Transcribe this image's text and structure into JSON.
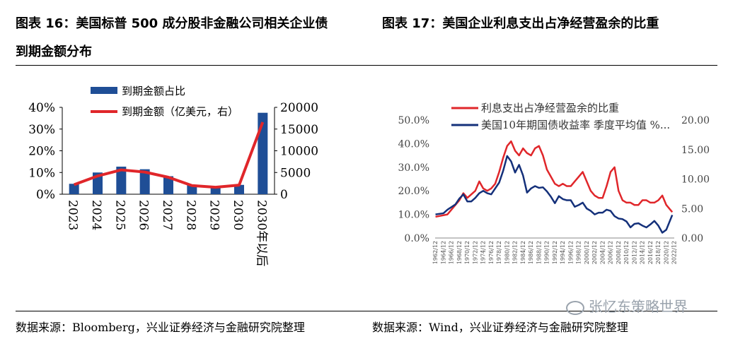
{
  "figure16": {
    "title_line1": "图表 16：美国标普 500 成分股非金融公司相关企业债",
    "title_line2": "到期金额分布",
    "source": "数据来源：Bloomberg，兴业证券经济与金融研究院整理"
  },
  "figure17": {
    "title": "图表 17：美国企业利息支出占净经营盈余的比重",
    "source": "数据来源：Wind，兴业证券经济与金融研究院整理"
  },
  "watermark": "张忆东策略世界",
  "colors": {
    "bar": "#1f4e96",
    "red": "#e0262a",
    "navy": "#14307a"
  },
  "chart_data": [
    {
      "type": "bar",
      "categories": [
        "2023",
        "2024",
        "2025",
        "2026",
        "2027",
        "2028",
        "2029",
        "2030",
        "2030年以后"
      ],
      "series": [
        {
          "name": "到期金额占比",
          "type": "bar",
          "axis": "left",
          "values": [
            4.8,
            10.0,
            12.7,
            11.5,
            8.3,
            4.3,
            3.5,
            4.3,
            37.5
          ]
        },
        {
          "name": "到期金额（亿美元，右）",
          "type": "line",
          "axis": "right",
          "values": [
            2200,
            4200,
            5600,
            5100,
            3900,
            2000,
            1600,
            2100,
            16600
          ]
        }
      ],
      "ylim": [
        0,
        40
      ],
      "y_ticks": [
        "0%",
        "10%",
        "20%",
        "30%",
        "40%"
      ],
      "y2lim": [
        0,
        20000
      ],
      "y2_ticks": [
        "0",
        "5000",
        "10000",
        "15000",
        "20000"
      ],
      "legend": "top"
    },
    {
      "type": "line",
      "x_ticks": [
        "1962/12",
        "1964/12",
        "1966/12",
        "1968/12",
        "1970/12",
        "1972/12",
        "1974/12",
        "1976/12",
        "1978/12",
        "1980/12",
        "1982/12",
        "1984/12",
        "1986/12",
        "1988/12",
        "1990/12",
        "1992/12",
        "1994/12",
        "1996/12",
        "1998/12",
        "2000/12",
        "2002/12",
        "2004/12",
        "2006/12",
        "2008/12",
        "2010/12",
        "2012/12",
        "2014/12",
        "2016/12",
        "2018/12",
        "2020/12",
        "2022/12"
      ],
      "xlim": [
        1962.9,
        2023.0
      ],
      "ylim": [
        0,
        50
      ],
      "y_ticks": [
        "0.0%",
        "10.0%",
        "20.0%",
        "30.0%",
        "40.0%",
        "50.0%"
      ],
      "y2lim": [
        0,
        20
      ],
      "y2_ticks": [
        "0.00",
        "5.00",
        "10.00",
        "15.00",
        "20.00"
      ],
      "legend": "top",
      "series": [
        {
          "name": "利息支出占净经营盈余的比重",
          "axis": "left",
          "x": [
            1963,
            1966,
            1968,
            1969,
            1970,
            1971,
            1973,
            1974,
            1975,
            1976,
            1977,
            1978,
            1979,
            1980,
            1981,
            1982,
            1983,
            1984,
            1985,
            1986,
            1987,
            1988,
            1989,
            1990,
            1991,
            1992,
            1993,
            1994,
            1995,
            1996,
            1997,
            1998,
            1999,
            2000,
            2001,
            2002,
            2003,
            2004,
            2005,
            2006,
            2007,
            2008,
            2009,
            2010,
            2011,
            2012,
            2013,
            2014,
            2015,
            2016,
            2017,
            2018,
            2019,
            2020,
            2021,
            2022.5
          ],
          "y": [
            9,
            10,
            14,
            16,
            19,
            17,
            20,
            24,
            21,
            20,
            21,
            23,
            28,
            34,
            39,
            41,
            37,
            35,
            38,
            36,
            35,
            38,
            39,
            35,
            29,
            26,
            23,
            22,
            23,
            22,
            22,
            24,
            26,
            28,
            24,
            20,
            18,
            17,
            17,
            22,
            28,
            30,
            20,
            16,
            15,
            15,
            14,
            14,
            16,
            16,
            15,
            15,
            16,
            18,
            14,
            11
          ]
        },
        {
          "name": "美国10年期国债收益率 季度平均值 %...",
          "axis": "right",
          "x": [
            1963,
            1965,
            1966,
            1968,
            1969,
            1970,
            1971,
            1972,
            1973,
            1974,
            1975,
            1976,
            1977,
            1978,
            1979,
            1980,
            1981,
            1982,
            1983,
            1984,
            1985,
            1986,
            1987,
            1988,
            1989,
            1990,
            1991,
            1992,
            1993,
            1994,
            1995,
            1996,
            1997,
            1998,
            1999,
            2000,
            2001,
            2002,
            2003,
            2004,
            2005,
            2006,
            2007,
            2008,
            2009,
            2010,
            2011,
            2012,
            2013,
            2014,
            2015,
            2016,
            2017,
            2018,
            2019,
            2020,
            2021,
            2022.5
          ],
          "y": [
            4.0,
            4.2,
            4.8,
            5.7,
            6.7,
            7.4,
            6.2,
            6.2,
            6.8,
            7.6,
            8.0,
            7.6,
            7.4,
            8.4,
            9.4,
            11.4,
            13.9,
            13.0,
            11.1,
            12.4,
            10.6,
            7.7,
            8.4,
            8.8,
            8.5,
            8.6,
            7.9,
            7.0,
            5.9,
            7.1,
            6.6,
            6.4,
            6.4,
            5.3,
            5.6,
            6.0,
            5.0,
            4.6,
            4.0,
            4.3,
            4.3,
            4.8,
            4.6,
            3.7,
            3.3,
            3.2,
            2.8,
            1.8,
            2.4,
            2.5,
            2.1,
            1.8,
            2.3,
            2.9,
            2.1,
            0.9,
            1.4,
            3.9
          ]
        }
      ]
    }
  ]
}
